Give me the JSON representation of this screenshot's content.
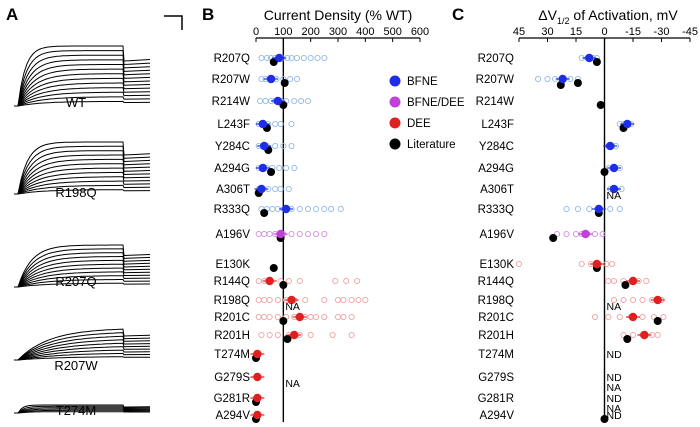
{
  "panels": {
    "A": {
      "letter": "A",
      "traces": [
        "WT",
        "R198Q",
        "R207Q",
        "R207W",
        "T274M"
      ]
    },
    "B": {
      "letter": "B",
      "title": "Current Density (% WT)"
    },
    "C": {
      "letter": "C",
      "title_prefix": "ΔV",
      "title_sub": "1/2",
      "title_suffix": " of Activation, mV"
    }
  },
  "legend": [
    {
      "label": "BFNE",
      "color": "#1f2ee6"
    },
    {
      "label": "BFNE/DEE",
      "color": "#c040d8"
    },
    {
      "label": "DEE",
      "color": "#e02020"
    },
    {
      "label": "Literature",
      "color": "#000000"
    }
  ],
  "chart_data": [
    {
      "type": "scatter",
      "panel": "B",
      "title": "Current Density (% WT)",
      "xlim": [
        0,
        600
      ],
      "xticks": [
        0,
        100,
        200,
        300,
        400,
        500,
        600
      ],
      "reference_line": 100,
      "variants": [
        "R207Q",
        "R207W",
        "R214W",
        "L243F",
        "Y284C",
        "A294G",
        "A306T",
        "R333Q",
        "A196V",
        "E130K",
        "R144Q",
        "R198Q",
        "R201C",
        "R201H",
        "T274M",
        "G279S",
        "G281R",
        "A294V"
      ],
      "points": [
        {
          "variant": "R207Q",
          "group": "BFNE",
          "mean": 85,
          "lit": 65,
          "cells": [
            20,
            40,
            55,
            70,
            95,
            115,
            130,
            150,
            175,
            200,
            225,
            250
          ]
        },
        {
          "variant": "R207W",
          "group": "BFNE",
          "mean": 55,
          "lit": 105,
          "cells": [
            20,
            35,
            50,
            75,
            100,
            125,
            150
          ]
        },
        {
          "variant": "R214W",
          "group": "BFNE",
          "mean": 80,
          "lit": 100,
          "cells": [
            15,
            35,
            55,
            70,
            90,
            110,
            140,
            165,
            190
          ]
        },
        {
          "variant": "L243F",
          "group": "BFNE",
          "mean": 25,
          "lit": 40,
          "cells": [
            10,
            20,
            30,
            45,
            70,
            90,
            130
          ]
        },
        {
          "variant": "Y284C",
          "group": "BFNE",
          "mean": 30,
          "lit": 45,
          "cells": [
            10,
            25,
            40,
            70,
            100,
            130
          ]
        },
        {
          "variant": "A294G",
          "group": "BFNE",
          "mean": 25,
          "lit": 55,
          "cells": [
            10,
            25,
            40,
            60,
            85,
            110,
            140
          ]
        },
        {
          "variant": "A306T",
          "group": "BFNE",
          "mean": 20,
          "lit": 10,
          "cells": [
            10,
            25,
            45,
            70,
            90,
            120
          ]
        },
        {
          "variant": "R333Q",
          "group": "BFNE",
          "mean": 110,
          "lit": 30,
          "cells": [
            20,
            40,
            60,
            80,
            100,
            130,
            160,
            190,
            220,
            250,
            275,
            310
          ]
        },
        {
          "variant": "A196V",
          "group": "BFNE/DEE",
          "mean": 90,
          "lit": 90,
          "cells": [
            10,
            30,
            50,
            70,
            100,
            130,
            160,
            190,
            220,
            250
          ]
        },
        {
          "variant": "E130K",
          "group": "DEE",
          "mean": null,
          "lit": 65,
          "cells": []
        },
        {
          "variant": "R144Q",
          "group": "DEE",
          "mean": 50,
          "lit": 100,
          "cells": [
            10,
            30,
            50,
            90,
            120,
            160,
            290,
            330,
            370
          ]
        },
        {
          "variant": "R198Q",
          "group": "DEE",
          "mean": 130,
          "lit": null,
          "lit_label": "NA",
          "cells": [
            10,
            30,
            50,
            80,
            110,
            140,
            180,
            250,
            300,
            320,
            350,
            375,
            400
          ]
        },
        {
          "variant": "R201C",
          "group": "DEE",
          "mean": 160,
          "lit": 100,
          "cells": [
            10,
            30,
            50,
            80,
            110,
            140,
            180,
            200,
            220,
            250,
            300,
            320,
            350
          ]
        },
        {
          "variant": "R201H",
          "group": "DEE",
          "mean": 140,
          "lit": 115,
          "cells": [
            20,
            50,
            80,
            120,
            160,
            200,
            280,
            350
          ]
        },
        {
          "variant": "T274M",
          "group": "DEE",
          "mean": 5,
          "lit": 0,
          "cells": []
        },
        {
          "variant": "G279S",
          "group": "DEE",
          "mean": 5,
          "lit": null,
          "lit_label": "NA",
          "cells": []
        },
        {
          "variant": "G281R",
          "group": "DEE",
          "mean": 5,
          "lit": 0,
          "cells": []
        },
        {
          "variant": "A294V",
          "group": "DEE",
          "mean": 5,
          "lit": 0,
          "cells": []
        }
      ]
    },
    {
      "type": "scatter",
      "panel": "C",
      "title": "ΔV1/2 of Activation, mV",
      "xlim": [
        45,
        -45
      ],
      "xticks": [
        45,
        30,
        15,
        0,
        -15,
        -30,
        -45
      ],
      "xtick_labels": [
        "45",
        "30",
        "15",
        "0",
        "-15",
        "-30",
        "-45"
      ],
      "reference_line": 0,
      "points": [
        {
          "variant": "R207Q",
          "group": "BFNE",
          "mean": 8,
          "lit": 4,
          "cells": [
            12,
            9,
            6,
            4
          ]
        },
        {
          "variant": "R207W",
          "group": "BFNE",
          "mean": 22,
          "lit": 14,
          "lit2": 23,
          "cells": [
            35,
            30,
            26,
            22,
            18,
            14
          ]
        },
        {
          "variant": "R214W",
          "group": "BFNE",
          "mean": null,
          "lit": 2,
          "cells": []
        },
        {
          "variant": "L243F",
          "group": "BFNE",
          "mean": -12,
          "lit": -10,
          "cells": [
            -8,
            -10,
            -12,
            -14
          ]
        },
        {
          "variant": "Y284C",
          "group": "BFNE",
          "mean": -3,
          "lit": null,
          "cells": [
            -2,
            -4,
            -6
          ]
        },
        {
          "variant": "A294G",
          "group": "BFNE",
          "mean": -5,
          "lit": 0,
          "cells": [
            -2,
            -5,
            -8
          ]
        },
        {
          "variant": "A306T",
          "group": "BFNE",
          "mean": -5,
          "lit": null,
          "lit_label": "NA",
          "cells": [
            -3,
            -6,
            -9
          ]
        },
        {
          "variant": "R333Q",
          "group": "BFNE",
          "mean": 3,
          "lit": 3,
          "cells": [
            20,
            14,
            8,
            3,
            -3,
            -8
          ]
        },
        {
          "variant": "A196V",
          "group": "BFNE/DEE",
          "mean": 10,
          "lit": 27,
          "cells": [
            25,
            20,
            15,
            12,
            9,
            5,
            1
          ]
        },
        {
          "variant": "E130K",
          "group": "DEE",
          "mean": 4,
          "lit": 4,
          "cells": [
            45,
            12,
            7,
            3,
            -1,
            -4
          ]
        },
        {
          "variant": "R144Q",
          "group": "DEE",
          "mean": -15,
          "lit": -11,
          "cells": [
            -2,
            -5,
            -10,
            -15,
            -18,
            -22
          ]
        },
        {
          "variant": "R198Q",
          "group": "DEE",
          "mean": -28,
          "lit": null,
          "lit_label": "NA",
          "cells": [
            -5,
            -10,
            -15,
            -20,
            -25,
            -30
          ]
        },
        {
          "variant": "R201C",
          "group": "DEE",
          "mean": -15,
          "lit": -28,
          "cells": [
            5,
            -2,
            -8,
            -14,
            -20,
            -26,
            -31
          ]
        },
        {
          "variant": "R201H",
          "group": "DEE",
          "mean": -21,
          "lit": -12,
          "cells": [
            -10,
            -15,
            -20,
            -25,
            -28
          ]
        },
        {
          "variant": "T274M",
          "group": "DEE",
          "mean": null,
          "lit": null,
          "label": "ND",
          "cells": []
        },
        {
          "variant": "G279S",
          "group": "DEE",
          "mean": null,
          "lit": null,
          "label": "ND",
          "lit_label": "NA",
          "cells": []
        },
        {
          "variant": "G281R",
          "group": "DEE",
          "mean": null,
          "lit": null,
          "label": "ND",
          "lit_label": "NA",
          "cells": []
        },
        {
          "variant": "A294V",
          "group": "DEE",
          "mean": null,
          "lit": 0,
          "label": "ND",
          "cells": []
        }
      ]
    }
  ]
}
